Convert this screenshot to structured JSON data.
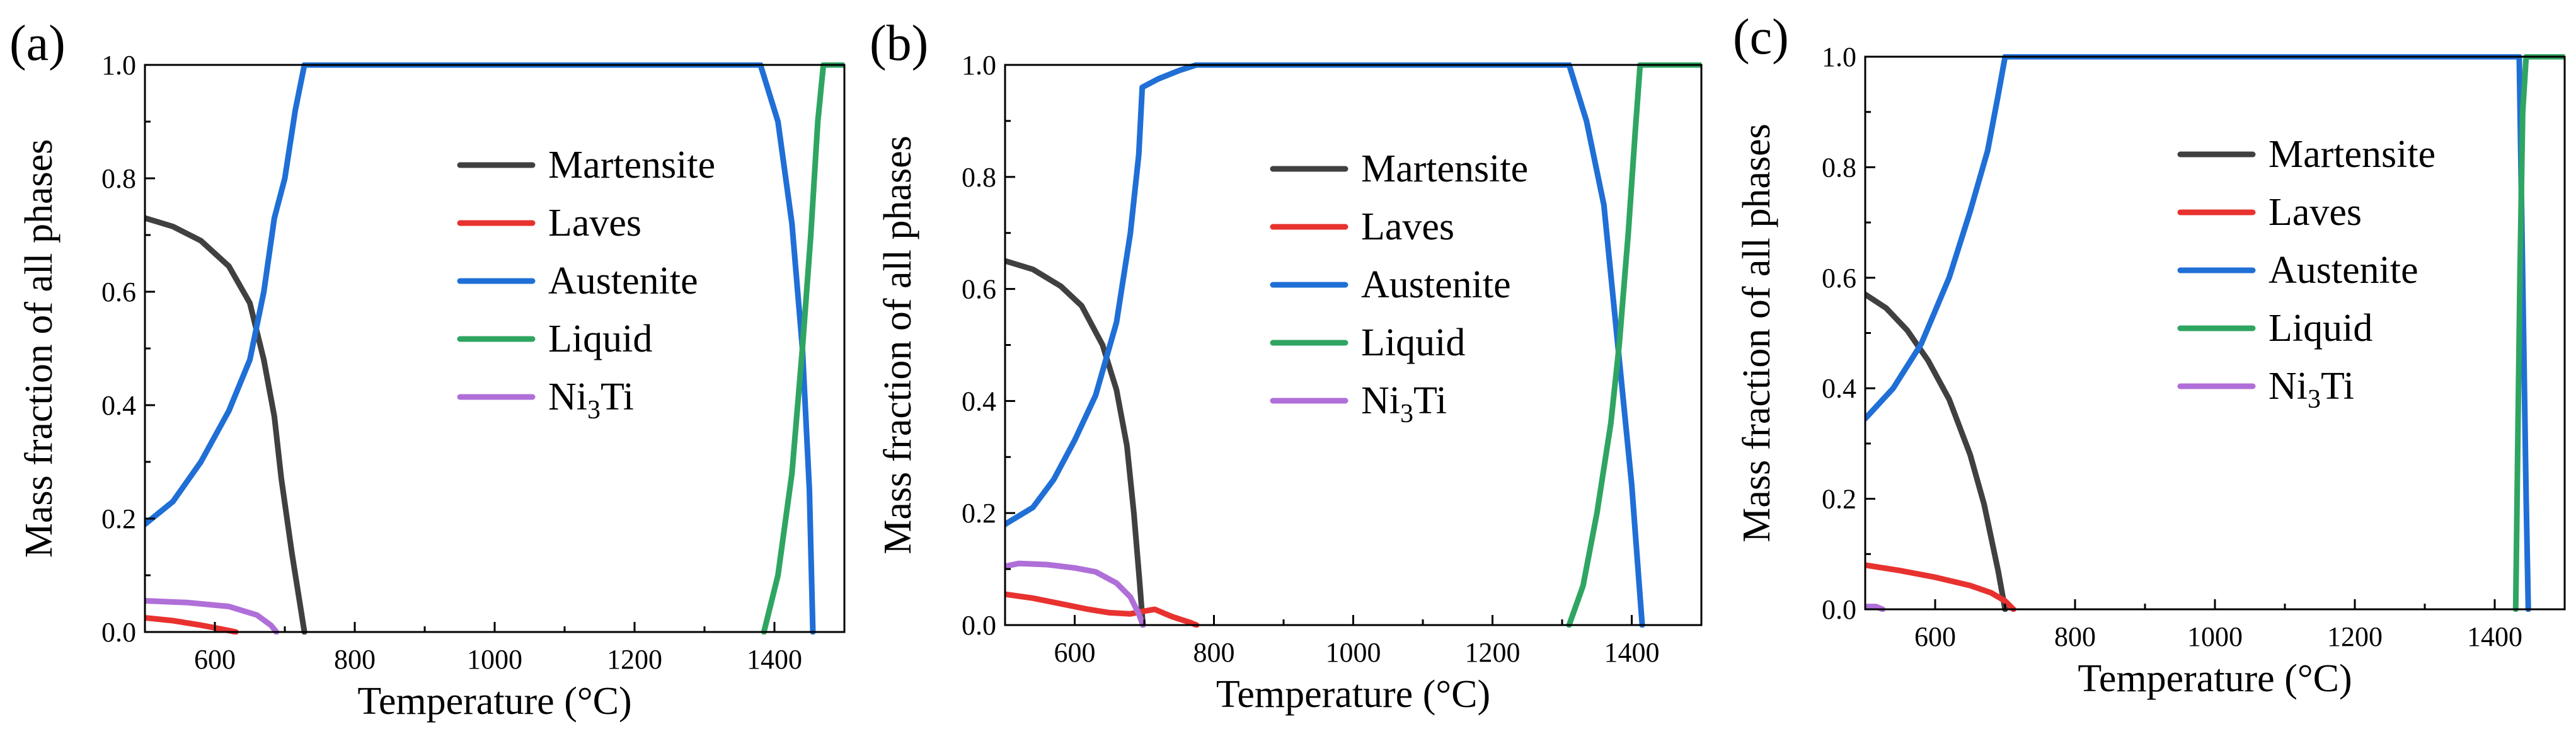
{
  "chart_data": [
    {
      "type": "line",
      "panel_label": "(a)",
      "xlabel": "Temperature (°C)",
      "ylabel": "Mass fraction of all phases",
      "xlim": [
        500,
        1500
      ],
      "ylim": [
        0,
        1
      ],
      "xticks": [
        600,
        800,
        1000,
        1200,
        1400
      ],
      "yticks": [
        "0.0",
        "0.2",
        "0.4",
        "0.6",
        "0.8",
        "1.0"
      ],
      "legend_position": "upper-middle",
      "series": [
        {
          "name": "Martensite",
          "color": "#404040",
          "points": [
            [
              500,
              0.73
            ],
            [
              540,
              0.715
            ],
            [
              580,
              0.69
            ],
            [
              620,
              0.645
            ],
            [
              650,
              0.58
            ],
            [
              670,
              0.48
            ],
            [
              685,
              0.38
            ],
            [
              695,
              0.27
            ],
            [
              710,
              0.14
            ],
            [
              728,
              0.0
            ]
          ]
        },
        {
          "name": "Laves",
          "color": "#e8322f",
          "points": [
            [
              500,
              0.025
            ],
            [
              540,
              0.02
            ],
            [
              580,
              0.012
            ],
            [
              610,
              0.005
            ],
            [
              630,
              0.0
            ]
          ]
        },
        {
          "name": "Austenite",
          "color": "#1f6fd6",
          "points": [
            [
              500,
              0.19
            ],
            [
              540,
              0.23
            ],
            [
              580,
              0.3
            ],
            [
              620,
              0.39
            ],
            [
              650,
              0.48
            ],
            [
              670,
              0.6
            ],
            [
              685,
              0.73
            ],
            [
              700,
              0.8
            ],
            [
              715,
              0.92
            ],
            [
              728,
              1.0
            ],
            [
              1380,
              1.0
            ],
            [
              1405,
              0.9
            ],
            [
              1425,
              0.72
            ],
            [
              1440,
              0.5
            ],
            [
              1450,
              0.25
            ],
            [
              1455,
              0.0
            ]
          ]
        },
        {
          "name": "Liquid",
          "color": "#2fa562",
          "points": [
            [
              1385,
              0.0
            ],
            [
              1405,
              0.1
            ],
            [
              1425,
              0.28
            ],
            [
              1440,
              0.5
            ],
            [
              1452,
              0.7
            ],
            [
              1462,
              0.9
            ],
            [
              1470,
              1.0
            ],
            [
              1500,
              1.0
            ]
          ]
        },
        {
          "name": "Ni3Ti",
          "color": "#b06fd8",
          "points": [
            [
              500,
              0.055
            ],
            [
              560,
              0.052
            ],
            [
              620,
              0.045
            ],
            [
              660,
              0.03
            ],
            [
              680,
              0.012
            ],
            [
              688,
              0.0
            ]
          ]
        }
      ]
    },
    {
      "type": "line",
      "panel_label": "(b)",
      "xlabel": "Temperature (°C)",
      "ylabel": "Mass fraction of all phases",
      "xlim": [
        500,
        1500
      ],
      "ylim": [
        0,
        1
      ],
      "xticks": [
        600,
        800,
        1000,
        1200,
        1400
      ],
      "yticks": [
        "0.0",
        "0.2",
        "0.4",
        "0.6",
        "0.8",
        "1.0"
      ],
      "legend_position": "upper-middle",
      "series": [
        {
          "name": "Martensite",
          "color": "#404040",
          "points": [
            [
              500,
              0.65
            ],
            [
              540,
              0.635
            ],
            [
              580,
              0.605
            ],
            [
              610,
              0.57
            ],
            [
              640,
              0.5
            ],
            [
              660,
              0.42
            ],
            [
              675,
              0.32
            ],
            [
              685,
              0.2
            ],
            [
              693,
              0.08
            ],
            [
              698,
              0.0
            ]
          ]
        },
        {
          "name": "Laves",
          "color": "#e8322f",
          "points": [
            [
              500,
              0.055
            ],
            [
              540,
              0.048
            ],
            [
              580,
              0.038
            ],
            [
              620,
              0.028
            ],
            [
              650,
              0.022
            ],
            [
              680,
              0.02
            ],
            [
              700,
              0.025
            ],
            [
              715,
              0.028
            ],
            [
              740,
              0.015
            ],
            [
              765,
              0.005
            ],
            [
              775,
              0.0
            ]
          ]
        },
        {
          "name": "Austenite",
          "color": "#1f6fd6",
          "points": [
            [
              500,
              0.18
            ],
            [
              540,
              0.21
            ],
            [
              570,
              0.26
            ],
            [
              600,
              0.33
            ],
            [
              630,
              0.41
            ],
            [
              660,
              0.54
            ],
            [
              680,
              0.7
            ],
            [
              692,
              0.84
            ],
            [
              697,
              0.96
            ],
            [
              720,
              0.975
            ],
            [
              750,
              0.99
            ],
            [
              775,
              1.0
            ],
            [
              1310,
              1.0
            ],
            [
              1335,
              0.9
            ],
            [
              1360,
              0.75
            ],
            [
              1380,
              0.5
            ],
            [
              1400,
              0.25
            ],
            [
              1415,
              0.0
            ]
          ]
        },
        {
          "name": "Liquid",
          "color": "#2fa562",
          "points": [
            [
              1310,
              0.0
            ],
            [
              1330,
              0.07
            ],
            [
              1350,
              0.2
            ],
            [
              1370,
              0.36
            ],
            [
              1382,
              0.5
            ],
            [
              1395,
              0.7
            ],
            [
              1405,
              0.88
            ],
            [
              1412,
              1.0
            ],
            [
              1500,
              1.0
            ]
          ]
        },
        {
          "name": "Ni3Ti",
          "color": "#b06fd8",
          "points": [
            [
              500,
              0.105
            ],
            [
              520,
              0.11
            ],
            [
              560,
              0.108
            ],
            [
              600,
              0.102
            ],
            [
              630,
              0.095
            ],
            [
              660,
              0.075
            ],
            [
              680,
              0.05
            ],
            [
              692,
              0.02
            ],
            [
              698,
              0.0
            ]
          ]
        }
      ]
    },
    {
      "type": "line",
      "panel_label": "(c)",
      "xlabel": "Temperature (°C)",
      "ylabel": "Mass fraction of all phases",
      "xlim": [
        500,
        1500
      ],
      "ylim": [
        0,
        1
      ],
      "xticks": [
        600,
        800,
        1000,
        1200,
        1400
      ],
      "yticks": [
        "0.0",
        "0.2",
        "0.4",
        "0.6",
        "0.8",
        "1.0"
      ],
      "legend_position": "upper-middle",
      "series": [
        {
          "name": "Martensite",
          "color": "#404040",
          "points": [
            [
              500,
              0.57
            ],
            [
              530,
              0.545
            ],
            [
              560,
              0.505
            ],
            [
              590,
              0.45
            ],
            [
              620,
              0.38
            ],
            [
              650,
              0.28
            ],
            [
              670,
              0.19
            ],
            [
              690,
              0.07
            ],
            [
              700,
              0.0
            ]
          ]
        },
        {
          "name": "Laves",
          "color": "#e8322f",
          "points": [
            [
              500,
              0.08
            ],
            [
              550,
              0.07
            ],
            [
              600,
              0.058
            ],
            [
              650,
              0.043
            ],
            [
              680,
              0.03
            ],
            [
              700,
              0.015
            ],
            [
              712,
              0.0
            ]
          ]
        },
        {
          "name": "Austenite",
          "color": "#1f6fd6",
          "points": [
            [
              500,
              0.345
            ],
            [
              540,
              0.4
            ],
            [
              580,
              0.48
            ],
            [
              620,
              0.6
            ],
            [
              650,
              0.72
            ],
            [
              675,
              0.83
            ],
            [
              690,
              0.93
            ],
            [
              700,
              1.0
            ],
            [
              1435,
              1.0
            ],
            [
              1440,
              0.6
            ],
            [
              1445,
              0.2
            ],
            [
              1448,
              0.0
            ]
          ]
        },
        {
          "name": "Liquid",
          "color": "#2fa562",
          "points": [
            [
              1430,
              0.0
            ],
            [
              1433,
              0.3
            ],
            [
              1436,
              0.6
            ],
            [
              1440,
              0.9
            ],
            [
              1445,
              1.0
            ],
            [
              1500,
              1.0
            ]
          ]
        },
        {
          "name": "Ni3Ti",
          "color": "#b06fd8",
          "points": [
            [
              500,
              0.005
            ],
            [
              515,
              0.005
            ],
            [
              525,
              0.0
            ]
          ]
        }
      ]
    }
  ]
}
